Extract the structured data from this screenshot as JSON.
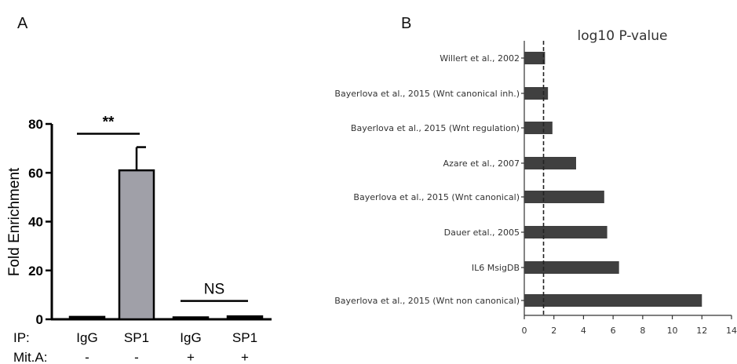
{
  "panels": {
    "a_label": "A",
    "b_label": "B"
  },
  "chart_data": [
    {
      "type": "bar",
      "panel": "A",
      "ylabel": "Fold Enrichment",
      "ylim": [
        0,
        80
      ],
      "yticks": [
        "0",
        "20",
        "40",
        "60",
        "80"
      ],
      "ytick_values": [
        0,
        20,
        40,
        60,
        80
      ],
      "categories": [
        "IgG",
        "SP1",
        "IgG",
        "SP1"
      ],
      "values": [
        1,
        61,
        0.8,
        1.2
      ],
      "errors": [
        0,
        9.5,
        0,
        0
      ],
      "bar_colors": [
        "#000000",
        "#a0a0a8",
        "#000000",
        "#000000"
      ],
      "row_labels": {
        "ip": "IP:",
        "mit": "Mit.A:"
      },
      "mit_values": [
        "-",
        "-",
        "+",
        "+"
      ],
      "annotations": [
        {
          "text": "**",
          "from": 0,
          "to": 1,
          "level": 76
        },
        {
          "text": "NS",
          "from": 2,
          "to": 3,
          "level": 7.5
        }
      ]
    },
    {
      "type": "bar",
      "orientation": "horizontal",
      "panel": "B",
      "title": "log10 P-value",
      "xlim": [
        0,
        14
      ],
      "xticks": [
        "0",
        "2",
        "4",
        "6",
        "8",
        "10",
        "12",
        "14"
      ],
      "xtick_values": [
        0,
        2,
        4,
        6,
        8,
        10,
        12,
        14
      ],
      "threshold": 1.3,
      "categories": [
        "Willert et al., 2002",
        "Bayerlova et al., 2015 (Wnt canonical inh.)",
        "Bayerlova et al., 2015 (Wnt regulation)",
        "Azare et al., 2007",
        "Bayerlova et al., 2015 (Wnt canonical)",
        "Dauer etal., 2005",
        "IL6 MsigDB",
        "Bayerlova et al., 2015 (Wnt non canonical)"
      ],
      "values": [
        1.4,
        1.6,
        1.9,
        3.5,
        5.4,
        5.6,
        6.4,
        12.0
      ],
      "bar_color": "#404040"
    }
  ]
}
